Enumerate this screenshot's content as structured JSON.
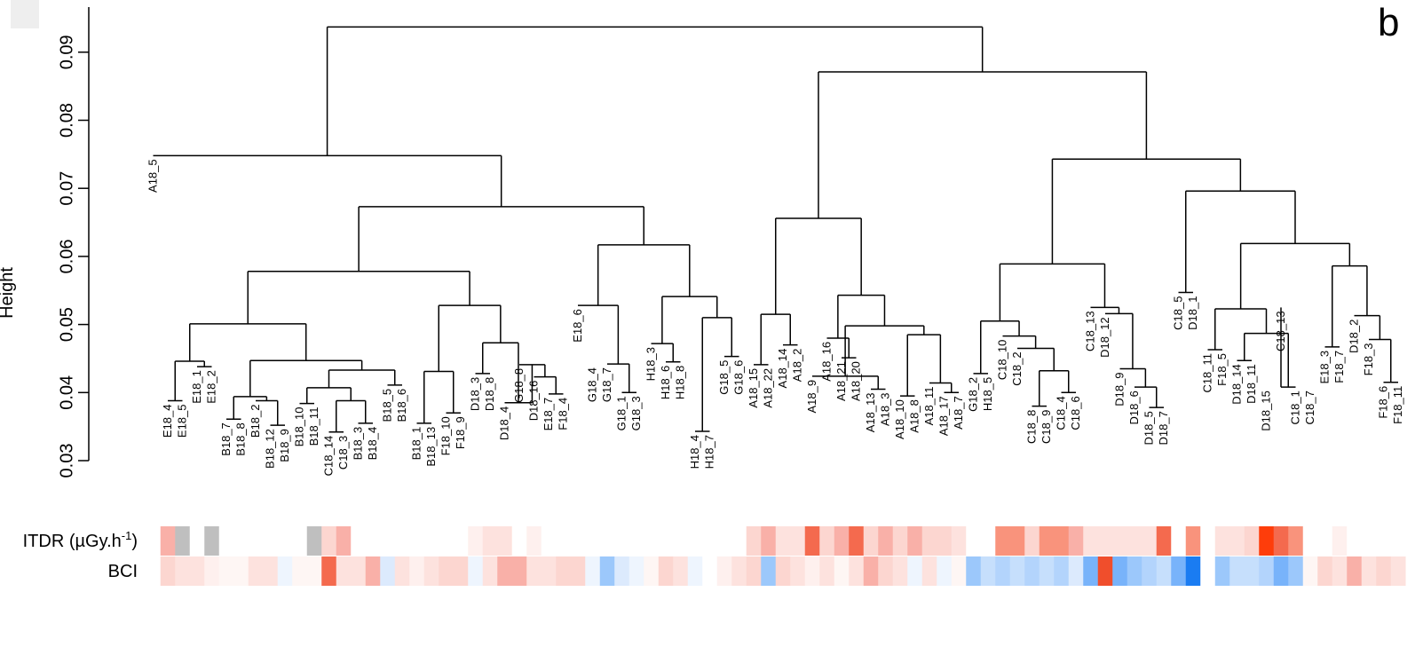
{
  "chart_data": {
    "type": "dendrogram",
    "panel_label": "b",
    "ylabel": "Height",
    "ylim": [
      0.03,
      0.095
    ],
    "yticks": [
      "0.03",
      "0.04",
      "0.05",
      "0.06",
      "0.07",
      "0.08",
      "0.09"
    ],
    "heatmap_rows": [
      {
        "name": "ITDR",
        "label": "ITDR (µGy.h",
        "label_sup": "-1",
        "label_close": ")"
      },
      {
        "name": "BCI",
        "label": "BCI"
      }
    ],
    "leaves": [
      {
        "label": "A18_5",
        "itdr": "#ffffff",
        "bci": "#ffffff"
      },
      {
        "label": "E18_4",
        "itdr": "#f9b0a8",
        "bci": "#fcd6d0"
      },
      {
        "label": "E18_5",
        "itdr": "#bfbfbf",
        "bci": "#fde2de"
      },
      {
        "label": "E18_1",
        "itdr": "#ffffff",
        "bci": "#fde2de"
      },
      {
        "label": "E18_2",
        "itdr": "#bfbfbf",
        "bci": "#fef0ee"
      },
      {
        "label": "B18_7",
        "itdr": "#ffffff",
        "bci": "#fef6f4"
      },
      {
        "label": "B18_8",
        "itdr": "#ffffff",
        "bci": "#fef6f4"
      },
      {
        "label": "B18_2",
        "itdr": "#ffffff",
        "bci": "#fde2de"
      },
      {
        "label": "B18_12",
        "itdr": "#ffffff",
        "bci": "#fde2de"
      },
      {
        "label": "B18_9",
        "itdr": "#ffffff",
        "bci": "#eef5fe"
      },
      {
        "label": "B18_10",
        "itdr": "#ffffff",
        "bci": "#fef6f4"
      },
      {
        "label": "B18_11",
        "itdr": "#bfbfbf",
        "bci": "#fef6f4"
      },
      {
        "label": "C18_14",
        "itdr": "#fcd6d0",
        "bci": "#f46a4e"
      },
      {
        "label": "C18_3",
        "itdr": "#f9b0a8",
        "bci": "#fde2de"
      },
      {
        "label": "B18_3",
        "itdr": "#ffffff",
        "bci": "#fde2de"
      },
      {
        "label": "B18_4",
        "itdr": "#ffffff",
        "bci": "#f9b0a8"
      },
      {
        "label": "B18_5",
        "itdr": "#ffffff",
        "bci": "#dceafd"
      },
      {
        "label": "B18_6",
        "itdr": "#ffffff",
        "bci": "#fde2de"
      },
      {
        "label": "B18_1",
        "itdr": "#ffffff",
        "bci": "#fef0ee"
      },
      {
        "label": "B18_13",
        "itdr": "#ffffff",
        "bci": "#fde2de"
      },
      {
        "label": "F18_10",
        "itdr": "#ffffff",
        "bci": "#fcd6d0"
      },
      {
        "label": "F18_9",
        "itdr": "#ffffff",
        "bci": "#fcd6d0"
      },
      {
        "label": "D18_3",
        "itdr": "#fef0ee",
        "bci": "#eef5fe"
      },
      {
        "label": "D18_8",
        "itdr": "#fde2de",
        "bci": "#fde2de"
      },
      {
        "label": "D18_4",
        "itdr": "#fde2de",
        "bci": "#f9b0a8"
      },
      {
        "label": "G18_8",
        "itdr": "#ffffff",
        "bci": "#f9b0a8"
      },
      {
        "label": "D18_16",
        "itdr": "#fef0ee",
        "bci": "#fde2de"
      },
      {
        "label": "E18_7",
        "itdr": "#ffffff",
        "bci": "#fde2de"
      },
      {
        "label": "F18_4",
        "itdr": "#ffffff",
        "bci": "#fcd6d0"
      },
      {
        "label": "E18_6",
        "itdr": "#ffffff",
        "bci": "#fcd6d0"
      },
      {
        "label": "G18_4",
        "itdr": "#ffffff",
        "bci": "#eef5fe"
      },
      {
        "label": "G18_7",
        "itdr": "#ffffff",
        "bci": "#9cc8fb"
      },
      {
        "label": "G18_1",
        "itdr": "#ffffff",
        "bci": "#dceafd"
      },
      {
        "label": "G18_3",
        "itdr": "#ffffff",
        "bci": "#eef5fe"
      },
      {
        "label": "H18_3",
        "itdr": "#ffffff",
        "bci": "#fef6f4"
      },
      {
        "label": "H18_6",
        "itdr": "#ffffff",
        "bci": "#fcd6d0"
      },
      {
        "label": "H18_8",
        "itdr": "#ffffff",
        "bci": "#fde2de"
      },
      {
        "label": "H18_4",
        "itdr": "#ffffff",
        "bci": "#eef5fe"
      },
      {
        "label": "H18_7",
        "itdr": "#ffffff",
        "bci": "#ffffff"
      },
      {
        "label": "G18_5",
        "itdr": "#ffffff",
        "bci": "#fef0ee"
      },
      {
        "label": "G18_6",
        "itdr": "#ffffff",
        "bci": "#fde2de"
      },
      {
        "label": "A18_15",
        "itdr": "#fcd6d0",
        "bci": "#fcd6d0"
      },
      {
        "label": "A18_22",
        "itdr": "#f9b0a8",
        "bci": "#9cc8fb"
      },
      {
        "label": "A18_14",
        "itdr": "#fde2de",
        "bci": "#fcd6d0"
      },
      {
        "label": "A18_2",
        "itdr": "#fde2de",
        "bci": "#fde2de"
      },
      {
        "label": "A18_9",
        "itdr": "#f46a4e",
        "bci": "#fef0ee"
      },
      {
        "label": "A18_16",
        "itdr": "#fcd6d0",
        "bci": "#fde2de"
      },
      {
        "label": "A18_21",
        "itdr": "#f9b0a8",
        "bci": "#fef6f4"
      },
      {
        "label": "A18_20",
        "itdr": "#f46a4e",
        "bci": "#fde2de"
      },
      {
        "label": "A18_13",
        "itdr": "#fcd6d0",
        "bci": "#f9b0a8"
      },
      {
        "label": "A18_3",
        "itdr": "#f9b0a8",
        "bci": "#fcd6d0"
      },
      {
        "label": "A18_10",
        "itdr": "#fcd6d0",
        "bci": "#fde2de"
      },
      {
        "label": "A18_8",
        "itdr": "#f9b0a8",
        "bci": "#eef5fe"
      },
      {
        "label": "A18_11",
        "itdr": "#fcd6d0",
        "bci": "#fde2de"
      },
      {
        "label": "A18_17",
        "itdr": "#fcd6d0",
        "bci": "#eef5fe"
      },
      {
        "label": "A18_7",
        "itdr": "#fde2de",
        "bci": "#fef6f4"
      },
      {
        "label": "G18_2",
        "itdr": "#ffffff",
        "bci": "#9cc8fb"
      },
      {
        "label": "H18_5",
        "itdr": "#ffffff",
        "bci": "#c6dffc"
      },
      {
        "label": "C18_10",
        "itdr": "#f9937c",
        "bci": "#b3d4fc"
      },
      {
        "label": "C18_2",
        "itdr": "#f9937c",
        "bci": "#c6dffc"
      },
      {
        "label": "C18_8",
        "itdr": "#fcd6d0",
        "bci": "#b3d4fc"
      },
      {
        "label": "C18_9",
        "itdr": "#f9937c",
        "bci": "#c6dffc"
      },
      {
        "label": "C18_4",
        "itdr": "#f9937c",
        "bci": "#b3d4fc"
      },
      {
        "label": "C18_6",
        "itdr": "#f9b0a8",
        "bci": "#dceafd"
      },
      {
        "label": "C18_13",
        "itdr": "#fde2de",
        "bci": "#78b3fa"
      },
      {
        "label": "D18_12",
        "itdr": "#fde2de",
        "bci": "#f04e2c"
      },
      {
        "label": "D18_9",
        "itdr": "#fde2de",
        "bci": "#78b3fa"
      },
      {
        "label": "D18_6",
        "itdr": "#fde2de",
        "bci": "#9cc8fb"
      },
      {
        "label": "D18_5",
        "itdr": "#fde2de",
        "bci": "#b3d4fc"
      },
      {
        "label": "D18_7",
        "itdr": "#f46a4e",
        "bci": "#c6dffc"
      },
      {
        "label": "C18_5",
        "itdr": "#ffffff",
        "bci": "#78b3fa"
      },
      {
        "label": "D18_1",
        "itdr": "#f9937c",
        "bci": "#1a7cf2"
      },
      {
        "label": "C18_11",
        "itdr": "#ffffff",
        "bci": "#ffffff"
      },
      {
        "label": "F18_5",
        "itdr": "#fde2de",
        "bci": "#9cc8fb"
      },
      {
        "label": "D18_14",
        "itdr": "#fde2de",
        "bci": "#c6dffc"
      },
      {
        "label": "D18_11",
        "itdr": "#fcd6d0",
        "bci": "#c6dffc"
      },
      {
        "label": "D18_15",
        "itdr": "#fe3d0a",
        "bci": "#b3d4fc"
      },
      {
        "label": "C18_13",
        "itdr": "#f46a4e",
        "bci": "#78b3fa"
      },
      {
        "label": "C18_1",
        "itdr": "#f9937c",
        "bci": "#9cc8fb"
      },
      {
        "label": "C18_7",
        "itdr": "#ffffff",
        "bci": "#fef6f4"
      },
      {
        "label": "E18_3",
        "itdr": "#ffffff",
        "bci": "#fcd6d0"
      },
      {
        "label": "F18_7",
        "itdr": "#fef0ee",
        "bci": "#fde2de"
      },
      {
        "label": "D18_2",
        "itdr": "#ffffff",
        "bci": "#f9b0a8"
      },
      {
        "label": "F18_3",
        "itdr": "#ffffff",
        "bci": "#fde2de"
      },
      {
        "label": "F18_6",
        "itdr": "#ffffff",
        "bci": "#fcd6d0"
      },
      {
        "label": "F18_11",
        "itdr": "#ffffff",
        "bci": "#fde2de"
      }
    ],
    "merges": [
      {
        "a": "B18_7",
        "b": "B18_8",
        "h": 0.0361
      },
      {
        "a": "B18_12",
        "b": "B18_9",
        "h": 0.0352
      },
      {
        "a": "B18_2",
        "b": "n1",
        "h": 0.0388
      },
      {
        "a": "n0",
        "b": "n2",
        "h": 0.0394
      },
      {
        "a": "C18_14",
        "b": "C18_3",
        "h": 0.0342
      },
      {
        "a": "B18_3",
        "b": "B18_4",
        "h": 0.0355
      },
      {
        "a": "n4",
        "b": "n5",
        "h": 0.0388
      },
      {
        "a": "B18_10",
        "b": "B18_11",
        "h": 0.0384
      },
      {
        "a": "n7",
        "b": "n6",
        "h": 0.0407
      },
      {
        "a": "B18_5",
        "b": "B18_6",
        "h": 0.0411
      },
      {
        "a": "n8",
        "b": "n9",
        "h": 0.0433
      },
      {
        "a": "n3",
        "b": "n10",
        "h": 0.0447
      },
      {
        "a": "E18_4",
        "b": "E18_5",
        "h": 0.0388
      },
      {
        "a": "E18_1",
        "b": "E18_2",
        "h": 0.0438
      },
      {
        "a": "n12",
        "b": "n13",
        "h": 0.0446
      },
      {
        "a": "n14",
        "b": "n11",
        "h": 0.0501
      },
      {
        "a": "B18_1",
        "b": "B18_13",
        "h": 0.0355
      },
      {
        "a": "F18_10",
        "b": "F18_9",
        "h": 0.037
      },
      {
        "a": "n16",
        "b": "n17",
        "h": 0.0431
      },
      {
        "a": "D18_3",
        "b": "D18_8",
        "h": 0.0428
      },
      {
        "a": "E18_7",
        "b": "F18_4",
        "h": 0.0398
      },
      {
        "a": "D18_16",
        "b": "n20",
        "h": 0.0423
      },
      {
        "a": "G18_8",
        "b": "n21",
        "h": 0.0441
      },
      {
        "a": "D18_4",
        "b": "n22",
        "h": 0.0385
      },
      {
        "a": "n19",
        "b": "n23",
        "h": 0.0473
      },
      {
        "a": "n18",
        "b": "n24",
        "h": 0.0528
      },
      {
        "a": "n15",
        "b": "n25",
        "h": 0.0578
      },
      {
        "a": "G18_1",
        "b": "G18_3",
        "h": 0.04
      },
      {
        "a": "G18_7",
        "b": "n27",
        "h": 0.0442
      },
      {
        "a": "E18_6",
        "b": "n28",
        "h": 0.0528
      },
      {
        "a": "H18_6",
        "b": "H18_8",
        "h": 0.0445
      },
      {
        "a": "H18_3",
        "b": "n30",
        "h": 0.0472
      },
      {
        "a": "G18_5",
        "b": "G18_6",
        "h": 0.0453
      },
      {
        "a": "H18_4",
        "b": "H18_7",
        "h": 0.0343
      },
      {
        "a": "n33",
        "b": "n32",
        "h": 0.051
      },
      {
        "a": "n31",
        "b": "n34",
        "h": 0.0541
      },
      {
        "a": "n29",
        "b": "n35",
        "h": 0.0617
      },
      {
        "a": "n26",
        "b": "n36",
        "h": 0.0673
      },
      {
        "a": "A18_5",
        "b": "n37",
        "h": 0.0748
      },
      {
        "a": "A18_15",
        "b": "A18_22",
        "h": 0.0441
      },
      {
        "a": "A18_14",
        "b": "A18_2",
        "h": 0.047
      },
      {
        "a": "n39",
        "b": "n40",
        "h": 0.0515
      },
      {
        "a": "A18_21",
        "b": "A18_20",
        "h": 0.0451
      },
      {
        "a": "A18_16",
        "b": "n42",
        "h": 0.048
      },
      {
        "a": "A18_13",
        "b": "A18_3",
        "h": 0.0405
      },
      {
        "a": "A18_9",
        "b": "n44",
        "h": 0.0424
      },
      {
        "a": "A18_10",
        "b": "A18_8",
        "h": 0.0395
      },
      {
        "a": "A18_17",
        "b": "A18_7",
        "h": 0.04
      },
      {
        "a": "A18_11",
        "b": "n47",
        "h": 0.0414
      },
      {
        "a": "n46",
        "b": "n48",
        "h": 0.0485
      },
      {
        "a": "n45",
        "b": "n49",
        "h": 0.0498
      },
      {
        "a": "n43",
        "b": "n50",
        "h": 0.0543
      },
      {
        "a": "n41",
        "b": "n51",
        "h": 0.0656
      },
      {
        "a": "G18_2",
        "b": "H18_5",
        "h": 0.0428
      },
      {
        "a": "C18_8",
        "b": "C18_9",
        "h": 0.038
      },
      {
        "a": "C18_4",
        "b": "C18_6",
        "h": 0.04
      },
      {
        "a": "n54",
        "b": "n55",
        "h": 0.0432
      },
      {
        "a": "C18_2",
        "b": "n56",
        "h": 0.0465
      },
      {
        "a": "C18_10",
        "b": "n57",
        "h": 0.0483
      },
      {
        "a": "n53",
        "b": "n58",
        "h": 0.0505
      },
      {
        "a": "D18_5",
        "b": "D18_7",
        "h": 0.0378
      },
      {
        "a": "D18_6",
        "b": "n60",
        "h": 0.0408
      },
      {
        "a": "D18_9",
        "b": "n61",
        "h": 0.0435
      },
      {
        "a": "D18_12",
        "b": "n62",
        "h": 0.0516
      },
      {
        "a": "C18_13",
        "b": "n63",
        "h": 0.0525
      },
      {
        "a": "n59",
        "b": "n64",
        "h": 0.0589
      },
      {
        "a": "C18_5",
        "b": "D18_1",
        "h": 0.0547
      },
      {
        "a": "D18_14",
        "b": "D18_11",
        "h": 0.0447
      },
      {
        "a": "C18_13",
        "b": "C18_1",
        "h": 0.0408
      },
      {
        "a": "n67",
        "b": "n68",
        "h": 0.0487
      },
      {
        "a": "C18_11",
        "b": "F18_5",
        "h": 0.0463
      },
      {
        "a": "n70",
        "b": "n69",
        "h": 0.0523
      },
      {
        "a": "E18_3",
        "b": "F18_7",
        "h": 0.0467
      },
      {
        "a": "F18_6",
        "b": "F18_11",
        "h": 0.0415
      },
      {
        "a": "F18_3",
        "b": "n73",
        "h": 0.0478
      },
      {
        "a": "D18_2",
        "b": "n74",
        "h": 0.0513
      },
      {
        "a": "n72",
        "b": "n75",
        "h": 0.0586
      },
      {
        "a": "n71",
        "b": "n76",
        "h": 0.0619
      },
      {
        "a": "n66",
        "b": "n77",
        "h": 0.0696
      },
      {
        "a": "n65",
        "b": "n78",
        "h": 0.0743
      },
      {
        "a": "n52",
        "b": "n79",
        "h": 0.0871
      },
      {
        "a": "n38",
        "b": "n80",
        "h": 0.0937
      }
    ]
  }
}
